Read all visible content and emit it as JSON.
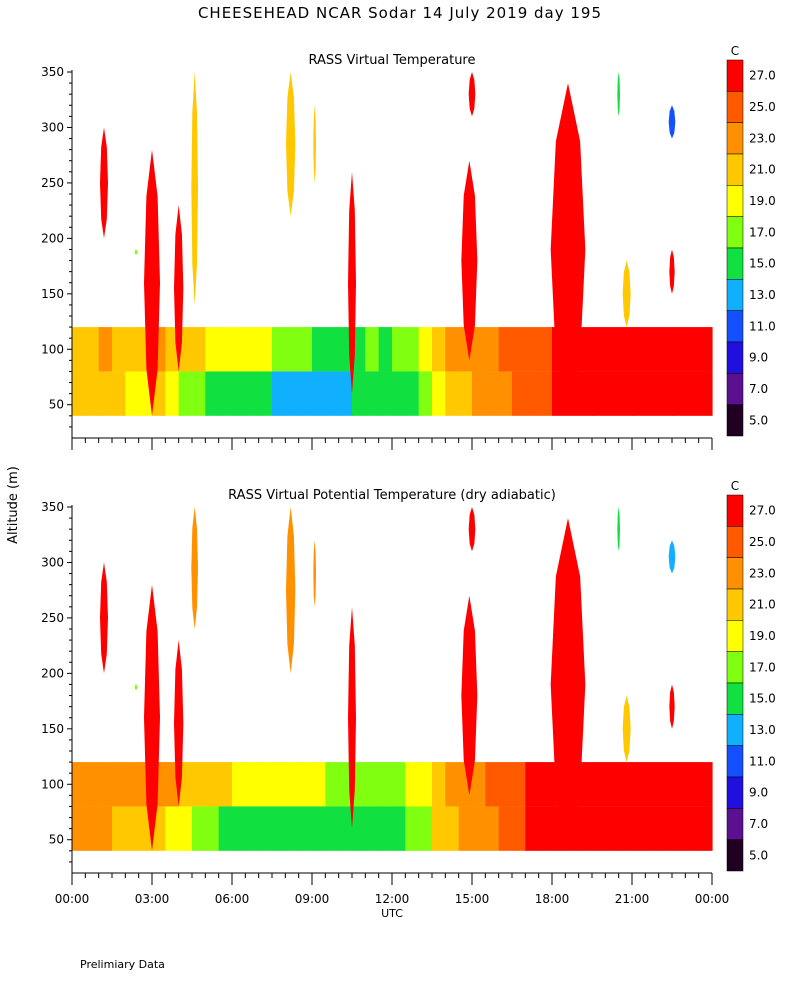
{
  "title": "CHEESEHEAD   NCAR Sodar   14 July 2019   day 195",
  "footnote": "Prelimiary Data",
  "colors": {
    "levels": [
      "#200020",
      "#5a1090",
      "#2010e0",
      "#1450ff",
      "#10b0ff",
      "#10e040",
      "#80ff10",
      "#ffff00",
      "#ffc800",
      "#ff9000",
      "#ff5a00",
      "#ff0000"
    ],
    "level_labels": [
      "5.0",
      "7.0",
      "9.0",
      "11.0",
      "13.0",
      "15.0",
      "17.0",
      "19.0",
      "21.0",
      "23.0",
      "25.0",
      "27.0"
    ]
  },
  "chart_data": [
    {
      "type": "heatmap",
      "title": "RASS Virtual Temperature",
      "colorbar_unit": "C",
      "ylabel": "Altitude (m)",
      "ylim": [
        20,
        350
      ],
      "xlim": [
        0,
        24
      ],
      "yticks": [
        50,
        100,
        150,
        200,
        250,
        300,
        350
      ],
      "ytick_labels": [
        "50",
        "100",
        "150",
        "200",
        "250",
        "300",
        "350"
      ],
      "xticks": [
        0,
        3,
        6,
        9,
        12,
        15,
        18,
        21,
        24
      ],
      "layer_top": 120,
      "layer_bottom": 40,
      "hours": [
        0,
        0.5,
        1,
        1.5,
        2,
        2.5,
        3,
        3.5,
        4,
        4.5,
        5,
        5.5,
        6,
        6.5,
        7,
        7.5,
        8,
        8.5,
        9,
        9.5,
        10,
        10.5,
        11,
        11.5,
        12,
        12.5,
        13,
        13.5,
        14,
        14.5,
        15,
        15.5,
        16,
        16.5,
        17,
        17.5,
        18,
        18.5,
        19,
        19.5,
        20,
        20.5,
        21,
        21.5,
        22,
        22.5,
        23,
        23.5
      ],
      "layer_temps": [
        22.5,
        22.5,
        23.0,
        22.5,
        22.0,
        22.0,
        23.5,
        22.5,
        21.5,
        21.5,
        20.5,
        20.0,
        19.5,
        19.0,
        19.0,
        18.5,
        17.5,
        17.0,
        16.5,
        16.5,
        16.0,
        16.5,
        17.0,
        16.5,
        17.0,
        18.0,
        19.0,
        21.0,
        23.0,
        23.0,
        23.5,
        24.5,
        25.0,
        25.5,
        26.0,
        26.5,
        27.0,
        27.5,
        27.5,
        27.5,
        27.5,
        27.5,
        27.5,
        27.5,
        27.5,
        27.5,
        27.5,
        27.5
      ],
      "surface_offset": [
        -1.5,
        -1.0,
        -0.5,
        -1.5,
        -1.5,
        -2.0,
        -2.0,
        -3.5,
        -3.5,
        -4.0,
        -4.5,
        -4.0,
        -4.0,
        -4.0,
        -4.0,
        -4.0,
        -3.5,
        -3.0,
        -2.5,
        -2.0,
        -2.0,
        -1.0,
        -1.0,
        -1.5,
        -2.0,
        -1.5,
        -1.0,
        -1.0,
        -0.5,
        -0.5,
        -0.5,
        -0.5,
        -0.5,
        -0.5,
        -0.5,
        -0.5,
        0,
        0,
        0,
        0,
        0,
        0,
        0,
        0,
        0,
        0,
        0,
        0
      ],
      "plumes": [
        {
          "hour": 1.2,
          "bottom": 200,
          "top": 300,
          "width": 0.3,
          "temp": 28
        },
        {
          "hour": 2.4,
          "bottom": 185,
          "top": 190,
          "width": 0.1,
          "temp": 17
        },
        {
          "hour": 3.0,
          "bottom": 40,
          "top": 280,
          "width": 0.6,
          "temp": 28
        },
        {
          "hour": 4.0,
          "bottom": 80,
          "top": 230,
          "width": 0.35,
          "temp": 28
        },
        {
          "hour": 4.6,
          "bottom": 140,
          "top": 350,
          "width": 0.25,
          "temp": 21
        },
        {
          "hour": 8.2,
          "bottom": 220,
          "top": 350,
          "width": 0.35,
          "temp": 21
        },
        {
          "hour": 9.1,
          "bottom": 250,
          "top": 320,
          "width": 0.1,
          "temp": 21
        },
        {
          "hour": 10.5,
          "bottom": 60,
          "top": 260,
          "width": 0.3,
          "temp": 28
        },
        {
          "hour": 14.9,
          "bottom": 90,
          "top": 270,
          "width": 0.6,
          "temp": 28
        },
        {
          "hour": 15.0,
          "bottom": 310,
          "top": 350,
          "width": 0.25,
          "temp": 28
        },
        {
          "hour": 18.6,
          "bottom": 40,
          "top": 340,
          "width": 1.3,
          "temp": 28
        },
        {
          "hour": 20.5,
          "bottom": 310,
          "top": 350,
          "width": 0.1,
          "temp": 15
        },
        {
          "hour": 20.8,
          "bottom": 120,
          "top": 180,
          "width": 0.3,
          "temp": 21
        },
        {
          "hour": 22.5,
          "bottom": 290,
          "top": 320,
          "width": 0.25,
          "temp": 11
        },
        {
          "hour": 22.5,
          "bottom": 150,
          "top": 190,
          "width": 0.2,
          "temp": 28
        }
      ]
    },
    {
      "type": "heatmap",
      "title": "RASS Virtual Potential Temperature (dry adiabatic)",
      "colorbar_unit": "C",
      "xlabel": "UTC",
      "ylim": [
        20,
        350
      ],
      "xlim": [
        0,
        24
      ],
      "yticks": [
        50,
        100,
        150,
        200,
        250,
        300,
        350
      ],
      "ytick_labels": [
        "50",
        "100",
        "150",
        "200",
        "250",
        "300",
        "350"
      ],
      "xticks": [
        0,
        3,
        6,
        9,
        12,
        15,
        18,
        21,
        24
      ],
      "xtick_labels": [
        "00:00",
        "03:00",
        "06:00",
        "09:00",
        "12:00",
        "15:00",
        "18:00",
        "21:00",
        "00:00"
      ],
      "layer_top": 120,
      "layer_bottom": 40,
      "hours": [
        0,
        0.5,
        1,
        1.5,
        2,
        2.5,
        3,
        3.5,
        4,
        4.5,
        5,
        5.5,
        6,
        6.5,
        7,
        7.5,
        8,
        8.5,
        9,
        9.5,
        10,
        10.5,
        11,
        11.5,
        12,
        12.5,
        13,
        13.5,
        14,
        14.5,
        15,
        15.5,
        16,
        16.5,
        17,
        17.5,
        18,
        18.5,
        19,
        19.5,
        20,
        20.5,
        21,
        21.5,
        22,
        22.5,
        23,
        23.5
      ],
      "layer_temps": [
        23.5,
        23.5,
        23.5,
        23.5,
        23.0,
        23.0,
        23.5,
        23.0,
        22.5,
        22.0,
        21.5,
        21.0,
        20.5,
        20.5,
        20.0,
        20.0,
        19.5,
        19.5,
        19.0,
        18.5,
        18.0,
        18.0,
        17.5,
        17.5,
        18.0,
        19.0,
        20.5,
        22.0,
        23.5,
        24.0,
        24.0,
        25.0,
        26.0,
        26.5,
        27.5,
        27.5,
        27.5,
        27.5,
        27.5,
        27.5,
        27.5,
        27.5,
        27.5,
        27.5,
        27.5,
        27.5,
        27.5,
        27.5
      ],
      "surface_offset": [
        0,
        0,
        -0.5,
        -1.0,
        -1.5,
        -1.5,
        -2.0,
        -2.5,
        -3.0,
        -4.0,
        -4.5,
        -4.5,
        -4.5,
        -4.0,
        -4.5,
        -4.5,
        -4.0,
        -4.0,
        -3.5,
        -3.0,
        -3.0,
        -2.0,
        -2.0,
        -2.0,
        -2.0,
        -1.5,
        -2.0,
        -1.0,
        -1.0,
        -0.5,
        -0.5,
        -0.5,
        -0.5,
        -0.5,
        0,
        0,
        0,
        0,
        0,
        0,
        0,
        0,
        0,
        0,
        0,
        0,
        0,
        0
      ],
      "plumes": [
        {
          "hour": 1.2,
          "bottom": 200,
          "top": 300,
          "width": 0.3,
          "temp": 28
        },
        {
          "hour": 2.4,
          "bottom": 185,
          "top": 190,
          "width": 0.1,
          "temp": 17
        },
        {
          "hour": 3.0,
          "bottom": 40,
          "top": 280,
          "width": 0.6,
          "temp": 28
        },
        {
          "hour": 4.0,
          "bottom": 80,
          "top": 230,
          "width": 0.35,
          "temp": 28
        },
        {
          "hour": 4.6,
          "bottom": 240,
          "top": 350,
          "width": 0.25,
          "temp": 24
        },
        {
          "hour": 8.2,
          "bottom": 200,
          "top": 350,
          "width": 0.35,
          "temp": 24
        },
        {
          "hour": 9.1,
          "bottom": 260,
          "top": 320,
          "width": 0.1,
          "temp": 23
        },
        {
          "hour": 10.5,
          "bottom": 60,
          "top": 260,
          "width": 0.3,
          "temp": 28
        },
        {
          "hour": 14.9,
          "bottom": 90,
          "top": 270,
          "width": 0.6,
          "temp": 28
        },
        {
          "hour": 15.0,
          "bottom": 310,
          "top": 350,
          "width": 0.25,
          "temp": 28
        },
        {
          "hour": 18.6,
          "bottom": 40,
          "top": 340,
          "width": 1.3,
          "temp": 28
        },
        {
          "hour": 20.5,
          "bottom": 310,
          "top": 350,
          "width": 0.1,
          "temp": 15
        },
        {
          "hour": 20.8,
          "bottom": 120,
          "top": 180,
          "width": 0.3,
          "temp": 21
        },
        {
          "hour": 22.5,
          "bottom": 290,
          "top": 320,
          "width": 0.25,
          "temp": 13
        },
        {
          "hour": 22.5,
          "bottom": 150,
          "top": 190,
          "width": 0.2,
          "temp": 28
        }
      ]
    }
  ]
}
